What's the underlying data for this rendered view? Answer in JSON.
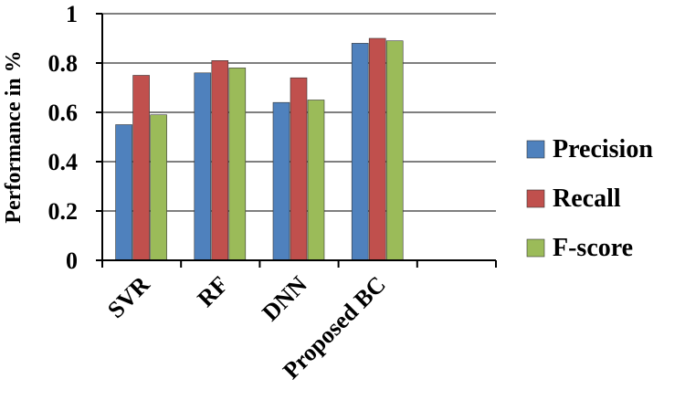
{
  "chart_data": {
    "type": "bar",
    "title": "",
    "xlabel": "",
    "ylabel": "Performance in %",
    "ylim": [
      0,
      1
    ],
    "yticks": [
      "0",
      "0.2",
      "0.4",
      "0.6",
      "0.8",
      "1"
    ],
    "grid": true,
    "legend_position": "right",
    "categories": [
      "SVR",
      "RF",
      "DNN",
      "Proposed BC"
    ],
    "series": [
      {
        "name": "Precision",
        "color": "#4F81BD",
        "values": [
          0.55,
          0.76,
          0.64,
          0.88
        ]
      },
      {
        "name": "Recall",
        "color": "#C0504D",
        "values": [
          0.75,
          0.81,
          0.74,
          0.9
        ]
      },
      {
        "name": "F-score",
        "color": "#9BBB59",
        "values": [
          0.59,
          0.78,
          0.65,
          0.89
        ]
      }
    ]
  }
}
